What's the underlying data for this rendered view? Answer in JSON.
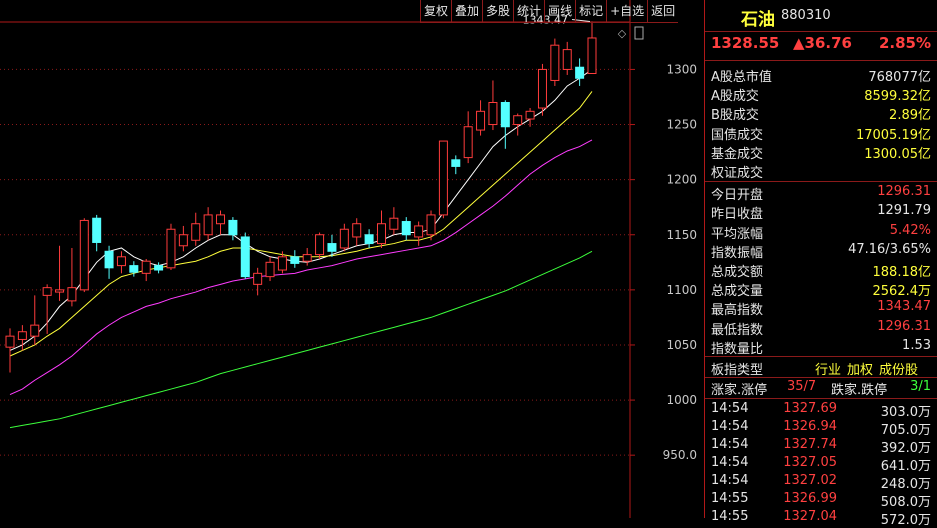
{
  "toolbar": [
    "复权",
    "叠加",
    "多股",
    "统计",
    "画线",
    "标记",
    "+自选",
    "返回"
  ],
  "chart_data": {
    "type": "candlestick",
    "ylim": [
      893,
      1363
    ],
    "yticks": [
      {
        "value": 950,
        "label": "950.0"
      },
      1000,
      1050,
      1100,
      1150,
      1200,
      1250,
      1300
    ],
    "grid": true,
    "up_color": "#ff3c3c",
    "down_color": "#54ffff",
    "max_annotation": 1343.47,
    "open": [
      1048,
      1055,
      1058,
      1095,
      1098,
      1090,
      1100,
      1165,
      1135,
      1122,
      1122,
      1115,
      1122,
      1120,
      1140,
      1145,
      1150,
      1160,
      1163,
      1148,
      1105,
      1112,
      1118,
      1130,
      1126,
      1132,
      1142,
      1138,
      1148,
      1150,
      1142,
      1155,
      1162,
      1148,
      1150,
      1168,
      1218,
      1220,
      1245,
      1250,
      1270,
      1250,
      1255,
      1265,
      1290,
      1300,
      1302,
      1296.31
    ],
    "high": [
      1065,
      1068,
      1095,
      1105,
      1140,
      1138,
      1165,
      1168,
      1140,
      1135,
      1126,
      1128,
      1125,
      1160,
      1158,
      1170,
      1175,
      1172,
      1166,
      1152,
      1120,
      1130,
      1135,
      1136,
      1138,
      1152,
      1150,
      1160,
      1165,
      1155,
      1172,
      1175,
      1166,
      1162,
      1172,
      1235,
      1222,
      1262,
      1272,
      1290,
      1272,
      1260,
      1265,
      1305,
      1328,
      1325,
      1310,
      1343.47
    ],
    "low": [
      1025,
      1045,
      1050,
      1060,
      1090,
      1085,
      1098,
      1135,
      1110,
      1115,
      1112,
      1108,
      1115,
      1118,
      1135,
      1140,
      1145,
      1150,
      1145,
      1110,
      1095,
      1108,
      1115,
      1120,
      1122,
      1128,
      1130,
      1135,
      1140,
      1138,
      1138,
      1150,
      1145,
      1140,
      1145,
      1165,
      1205,
      1215,
      1240,
      1245,
      1228,
      1240,
      1248,
      1258,
      1285,
      1295,
      1285,
      1296.31
    ],
    "close": [
      1058,
      1062,
      1068,
      1102,
      1100,
      1102,
      1163,
      1143,
      1120,
      1130,
      1116,
      1126,
      1118,
      1155,
      1150,
      1160,
      1168,
      1168,
      1150,
      1112,
      1115,
      1125,
      1130,
      1124,
      1132,
      1150,
      1135,
      1155,
      1160,
      1142,
      1160,
      1165,
      1150,
      1158,
      1168,
      1235,
      1212,
      1248,
      1262,
      1270,
      1248,
      1258,
      1262,
      1300,
      1322,
      1318,
      1292,
      1328.55
    ],
    "series": [
      {
        "color": "#ffffff",
        "values": [
          1045,
          1050,
          1058,
          1070,
          1085,
          1095,
          1110,
          1125,
          1135,
          1138,
          1130,
          1125,
          1122,
          1125,
          1130,
          1138,
          1145,
          1150,
          1150,
          1142,
          1135,
          1130,
          1128,
          1126,
          1125,
          1128,
          1132,
          1136,
          1140,
          1142,
          1145,
          1150,
          1152,
          1152,
          1155,
          1170,
          1185,
          1200,
          1215,
          1230,
          1240,
          1248,
          1255,
          1262,
          1272,
          1285,
          1292,
          1300
        ]
      },
      {
        "color": "#ffff3c",
        "values": [
          1040,
          1045,
          1050,
          1058,
          1065,
          1075,
          1085,
          1095,
          1105,
          1112,
          1115,
          1118,
          1120,
          1122,
          1124,
          1126,
          1130,
          1135,
          1138,
          1138,
          1136,
          1134,
          1132,
          1130,
          1130,
          1130,
          1131,
          1133,
          1135,
          1138,
          1140,
          1142,
          1145,
          1145,
          1148,
          1155,
          1165,
          1175,
          1185,
          1195,
          1205,
          1215,
          1225,
          1235,
          1245,
          1255,
          1265,
          1280
        ]
      },
      {
        "color": "#ff3cff",
        "values": [
          1005,
          1010,
          1018,
          1025,
          1032,
          1040,
          1050,
          1060,
          1068,
          1075,
          1080,
          1085,
          1088,
          1092,
          1095,
          1098,
          1102,
          1105,
          1108,
          1110,
          1112,
          1113,
          1114,
          1115,
          1118,
          1120,
          1122,
          1125,
          1128,
          1130,
          1132,
          1134,
          1136,
          1138,
          1140,
          1145,
          1152,
          1160,
          1168,
          1176,
          1185,
          1195,
          1205,
          1213,
          1220,
          1226,
          1230,
          1236
        ]
      },
      {
        "color": "#3cff3c",
        "values": [
          975,
          977,
          979,
          981,
          983,
          986,
          989,
          992,
          995,
          998,
          1001,
          1004,
          1007,
          1010,
          1013,
          1016,
          1020,
          1024,
          1027,
          1030,
          1033,
          1036,
          1039,
          1042,
          1045,
          1048,
          1051,
          1054,
          1057,
          1060,
          1063,
          1066,
          1069,
          1072,
          1075,
          1079,
          1083,
          1087,
          1091,
          1095,
          1099,
          1104,
          1109,
          1114,
          1119,
          1124,
          1129,
          1135
        ]
      }
    ]
  },
  "quote": {
    "name": "石油",
    "code": "880310",
    "price": "1328.55",
    "change": "▲36.76",
    "pct": "2.85%",
    "stats": [
      {
        "label": "A股总市值",
        "value": "768077亿",
        "color": "#e6e6e6"
      },
      {
        "label": "A股成交",
        "value": "8599.32亿",
        "color": "#ffff3c"
      },
      {
        "label": "B股成交",
        "value": "2.89亿",
        "color": "#ffff3c"
      },
      {
        "label": "国债成交",
        "value": "17005.19亿",
        "color": "#ffff3c"
      },
      {
        "label": "基金成交",
        "value": "1300.05亿",
        "color": "#ffff3c"
      },
      {
        "label": "权证成交",
        "value": "",
        "color": "#ffff3c"
      },
      {
        "label": "今日开盘",
        "value": "1296.31",
        "color": "#ff4040"
      },
      {
        "label": "昨日收盘",
        "value": "1291.79",
        "color": "#e6e6e6"
      },
      {
        "label": "平均涨幅",
        "value": "5.42%",
        "color": "#ff4040"
      },
      {
        "label": "指数振幅",
        "value": "47.16/3.65%",
        "color": "#e6e6e6"
      },
      {
        "label": "总成交额",
        "value": "188.18亿",
        "color": "#ffff3c"
      },
      {
        "label": "总成交量",
        "value": "2562.4万",
        "color": "#ffff3c"
      },
      {
        "label": "最高指数",
        "value": "1343.47",
        "color": "#ff4040"
      },
      {
        "label": "最低指数",
        "value": "1296.31",
        "color": "#ff4040"
      },
      {
        "label": "指数量比",
        "value": "1.53",
        "color": "#e6e6e6"
      }
    ],
    "index_type": {
      "label": "板指类型",
      "options": [
        "行业",
        "加权",
        "成份股"
      ]
    },
    "breadth": {
      "up_label": "涨家.涨停",
      "up": "35/7",
      "down_label": "跌家.跌停",
      "down": "3/1"
    },
    "ticks": [
      [
        "14:54",
        "1327.69",
        "303.0万"
      ],
      [
        "14:54",
        "1326.94",
        "705.0万"
      ],
      [
        "14:54",
        "1327.74",
        "392.0万"
      ],
      [
        "14:54",
        "1327.05",
        "641.0万"
      ],
      [
        "14:54",
        "1327.02",
        "248.0万"
      ],
      [
        "14:55",
        "1326.99",
        "508.0万"
      ],
      [
        "14:55",
        "1327.04",
        "572.0万"
      ]
    ]
  }
}
